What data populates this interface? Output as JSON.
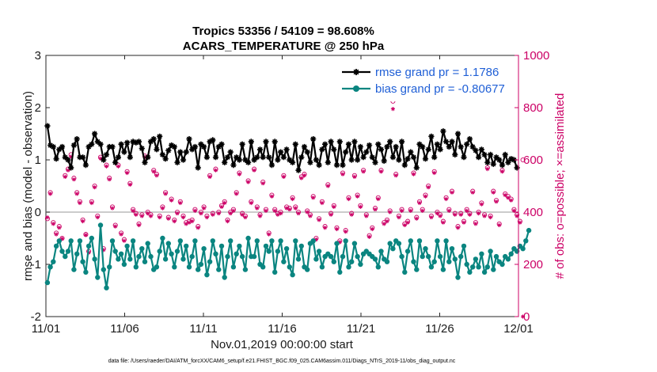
{
  "chart_data": {
    "type": "line",
    "title_line1": "Tropics 53356 / 54109 = 98.608%",
    "title_line2": "ACARS_TEMPERATURE @ 250 hPa",
    "ylabel": "rmse and bias (model - observation)",
    "ylabel_right": "# of obs: o=possible; ×=assimilated",
    "xlabel": "Nov.01,2019 00:00:00 start",
    "footnote": "data file: /Users/raeder/DAI/ATM_forcXX/CAM6_setup/f.e21.FHIST_BGC.f09_025.CAM6assim.011/Diags_NTrS_2019-11/obs_diag_output.nc",
    "xlim": [
      0,
      30
    ],
    "ylim": [
      -2,
      3
    ],
    "ylim_right": [
      0,
      1000
    ],
    "x_ticks": [
      0,
      5,
      10,
      15,
      20,
      25,
      30
    ],
    "x_tick_labels": [
      "11/01",
      "11/06",
      "11/11",
      "11/16",
      "11/21",
      "11/26",
      "12/01"
    ],
    "y_ticks": [
      -2,
      -1,
      0,
      1,
      2,
      3
    ],
    "y_tick_labels": [
      "-2",
      "-1",
      "0",
      "1",
      "2",
      "3"
    ],
    "y_ticks_right": [
      0,
      200,
      400,
      600,
      800,
      1000
    ],
    "y_tick_labels_right": [
      "0",
      "200",
      "400",
      "600",
      "800",
      "1000"
    ],
    "zero_line": 0,
    "legend_position": "top-right",
    "colors": {
      "rmse": "#000000",
      "bias": "#0a8580",
      "obs": "#cc0066",
      "zero": "#bbbbbb",
      "legend_text": "#1f5fd6"
    },
    "series": [
      {
        "name": "rmse grand pr = 1.1786",
        "type": "line",
        "marker": "asterisk",
        "values": [
          1.65,
          1.28,
          1.25,
          1.02,
          1.2,
          1.25,
          1.05,
          1.0,
          0.85,
          1.28,
          1.4,
          1.05,
          1.05,
          0.9,
          1.25,
          1.3,
          1.5,
          1.35,
          1.3,
          1.0,
          1.1,
          1.25,
          1.25,
          0.95,
          1.05,
          1.3,
          1.15,
          1.33,
          1.05,
          1.35,
          1.33,
          1.35,
          1.22,
          0.95,
          1.05,
          1.35,
          1.4,
          1.2,
          1.45,
          1.1,
          1.02,
          1.18,
          1.28,
          1.25,
          0.95,
          1.15,
          1.0,
          1.15,
          1.4,
          1.2,
          1.25,
          0.85,
          1.3,
          1.25,
          1.05,
          1.35,
          1.38,
          1.05,
          1.25,
          1.3,
          0.95,
          1.05,
          1.15,
          0.9,
          1.05,
          1.0,
          1.3,
          1.0,
          0.95,
          1.35,
          1.0,
          1.05,
          1.2,
          1.05,
          1.35,
          1.05,
          0.9,
          1.35,
          1.0,
          1.15,
          1.05,
          1.2,
          1.0,
          0.95,
          1.3,
          0.8,
          1.05,
          1.25,
          1.15,
          0.95,
          1.4,
          1.0,
          0.9,
          1.2,
          1.3,
          0.95,
          1.35,
          1.2,
          0.9,
          1.35,
          0.9,
          1.15,
          1.3,
          1.0,
          1.35,
          1.0,
          1.25,
          1.05,
          1.15,
          1.28,
          1.05,
          0.95,
          1.3,
          1.2,
          0.98,
          1.25,
          1.35,
          1.05,
          1.25,
          1.0,
          1.35,
          0.9,
          1.02,
          1.15,
          1.05,
          0.85,
          1.3,
          1.25,
          1.02,
          1.2,
          1.45,
          1.05,
          1.3,
          1.2,
          1.55,
          1.35,
          1.25,
          1.35,
          1.1,
          1.5,
          1.25,
          1.05,
          1.3,
          1.4,
          1.25,
          1.18,
          1.05,
          1.2,
          1.1,
          0.95,
          1.1,
          0.92,
          1.05,
          1.0,
          0.9,
          1.1,
          0.95,
          1.02,
          1.0,
          0.85
        ]
      },
      {
        "name": "bias grand pr = -0.80677",
        "type": "line",
        "marker": "circle",
        "values": [
          -1.35,
          -1.05,
          -0.95,
          -0.65,
          -0.55,
          -0.75,
          -0.85,
          -0.75,
          -0.55,
          -1.1,
          -0.8,
          -0.55,
          -0.95,
          -1.15,
          -0.65,
          -0.5,
          -0.9,
          -1.25,
          -0.25,
          -1.1,
          -1.45,
          -1.05,
          -0.55,
          -0.75,
          -0.9,
          -0.8,
          -1.0,
          -0.65,
          -0.9,
          -0.55,
          -1.05,
          -0.85,
          -0.7,
          -0.95,
          -0.6,
          -0.85,
          -1.1,
          -1.05,
          -0.75,
          -0.5,
          -0.9,
          -0.6,
          -0.8,
          -1.05,
          -0.75,
          -0.55,
          -0.9,
          -0.65,
          -1.05,
          -0.85,
          -0.55,
          -1.1,
          -1.0,
          -0.7,
          -1.2,
          -0.95,
          -0.55,
          -0.8,
          -1.1,
          -0.65,
          -1.25,
          -0.85,
          -0.55,
          -1.05,
          -0.8,
          -0.65,
          -0.85,
          -1.1,
          -0.5,
          -0.85,
          -0.85,
          -0.55,
          -1.0,
          -1.05,
          -0.65,
          -0.75,
          -0.55,
          -1.15,
          -0.75,
          -0.55,
          -0.95,
          -0.7,
          -1.05,
          -1.2,
          -0.55,
          -0.9,
          -0.65,
          -1.05,
          -1.1,
          -0.6,
          -0.55,
          -0.9,
          -0.75,
          -1.05,
          -0.85,
          -0.8,
          -0.85,
          -0.95,
          -0.6,
          -1.15,
          -0.85,
          -0.55,
          -1.05,
          -0.95,
          -0.6,
          -0.85,
          -1.0,
          -0.8,
          -0.75,
          -0.8,
          -0.85,
          -0.9,
          -1.05,
          -0.75,
          -0.9,
          -0.95,
          -0.6,
          -0.7,
          -0.55,
          -0.6,
          -0.85,
          -1.15,
          -0.75,
          -0.55,
          -0.95,
          -1.1,
          -0.55,
          -0.85,
          -0.7,
          -0.85,
          -1.05,
          -0.95,
          -0.55,
          -0.85,
          -1.1,
          -0.55,
          -0.95,
          -0.7,
          -0.9,
          -1.25,
          -0.85,
          -0.65,
          -1.0,
          -1.15,
          -1.05,
          -0.9,
          -1.05,
          -0.8,
          -1.15,
          -1.05,
          -0.75,
          -1.1,
          -0.85,
          -0.95,
          -1.0,
          -0.85,
          -0.9,
          -0.8,
          -0.7,
          -0.75,
          -0.65,
          -0.7,
          -0.55,
          -0.35
        ]
      },
      {
        "name": "obs possible",
        "type": "scatter",
        "marker": "o",
        "axis": "right",
        "values": [
          375,
          475,
          360,
          320,
          345,
          300,
          540,
          565,
          620,
          530,
          475,
          440,
          370,
          315,
          250,
          440,
          500,
          385,
          610,
          260,
          580,
          530,
          420,
          350,
          580,
          320,
          295,
          555,
          510,
          410,
          395,
          355,
          390,
          615,
          400,
          390,
          560,
          545,
          385,
          420,
          475,
          380,
          450,
          370,
          400,
          440,
          385,
          360,
          365,
          370,
          410,
          345,
          400,
          420,
          385,
          540,
          395,
          565,
          400,
          425,
          440,
          370,
          400,
          410,
          475,
          550,
          395,
          385,
          520,
          440,
          565,
          420,
          390,
          515,
          410,
          320,
          465,
          410,
          395,
          400,
          540,
          420,
          415,
          455,
          420,
          400,
          535,
          545,
          405,
          390,
          460,
          300,
          375,
          440,
          345,
          505,
          395,
          425,
          340,
          290,
          550,
          330,
          455,
          395,
          540,
          465,
          425,
          560,
          390,
          310,
          340,
          415,
          455,
          560,
          360,
          370,
          405,
          825,
          545,
          385,
          410,
          355,
          365,
          410,
          550,
          380,
          440,
          410,
          465,
          500,
          385,
          555,
          400,
          390,
          365,
          455,
          410,
          480,
          395,
          345,
          395,
          365,
          410,
          395,
          480,
          360,
          400,
          435,
          390,
          570,
          385,
          480,
          445,
          355,
          560,
          470,
          460,
          450,
          410,
          390,
          365,
          600
        ]
      },
      {
        "name": "obs assimilated",
        "type": "scatter",
        "marker": "asterisk",
        "axis": "right",
        "values": [
          380,
          470,
          355,
          315,
          340,
          298,
          535,
          560,
          612,
          525,
          470,
          435,
          365,
          312,
          245,
          435,
          495,
          380,
          605,
          255,
          575,
          525,
          415,
          345,
          575,
          315,
          290,
          550,
          505,
          405,
          390,
          350,
          385,
          610,
          395,
          385,
          555,
          540,
          380,
          415,
          470,
          375,
          445,
          365,
          395,
          435,
          380,
          355,
          360,
          365,
          405,
          340,
          395,
          415,
          380,
          535,
          390,
          560,
          395,
          420,
          435,
          365,
          395,
          405,
          470,
          545,
          390,
          380,
          515,
          435,
          560,
          415,
          385,
          510,
          405,
          315,
          460,
          405,
          390,
          395,
          535,
          415,
          410,
          450,
          415,
          395,
          530,
          540,
          400,
          385,
          455,
          295,
          370,
          435,
          340,
          500,
          390,
          420,
          335,
          285,
          545,
          325,
          450,
          390,
          535,
          460,
          420,
          555,
          385,
          305,
          335,
          410,
          450,
          555,
          355,
          365,
          400,
          795,
          540,
          380,
          405,
          350,
          360,
          405,
          545,
          375,
          435,
          405,
          460,
          495,
          380,
          550,
          395,
          385,
          360,
          450,
          405,
          475,
          390,
          340,
          390,
          360,
          405,
          390,
          475,
          355,
          395,
          430,
          385,
          565,
          380,
          475,
          440,
          350,
          555,
          465,
          455,
          445,
          405,
          385,
          360,
          0
        ]
      }
    ]
  }
}
